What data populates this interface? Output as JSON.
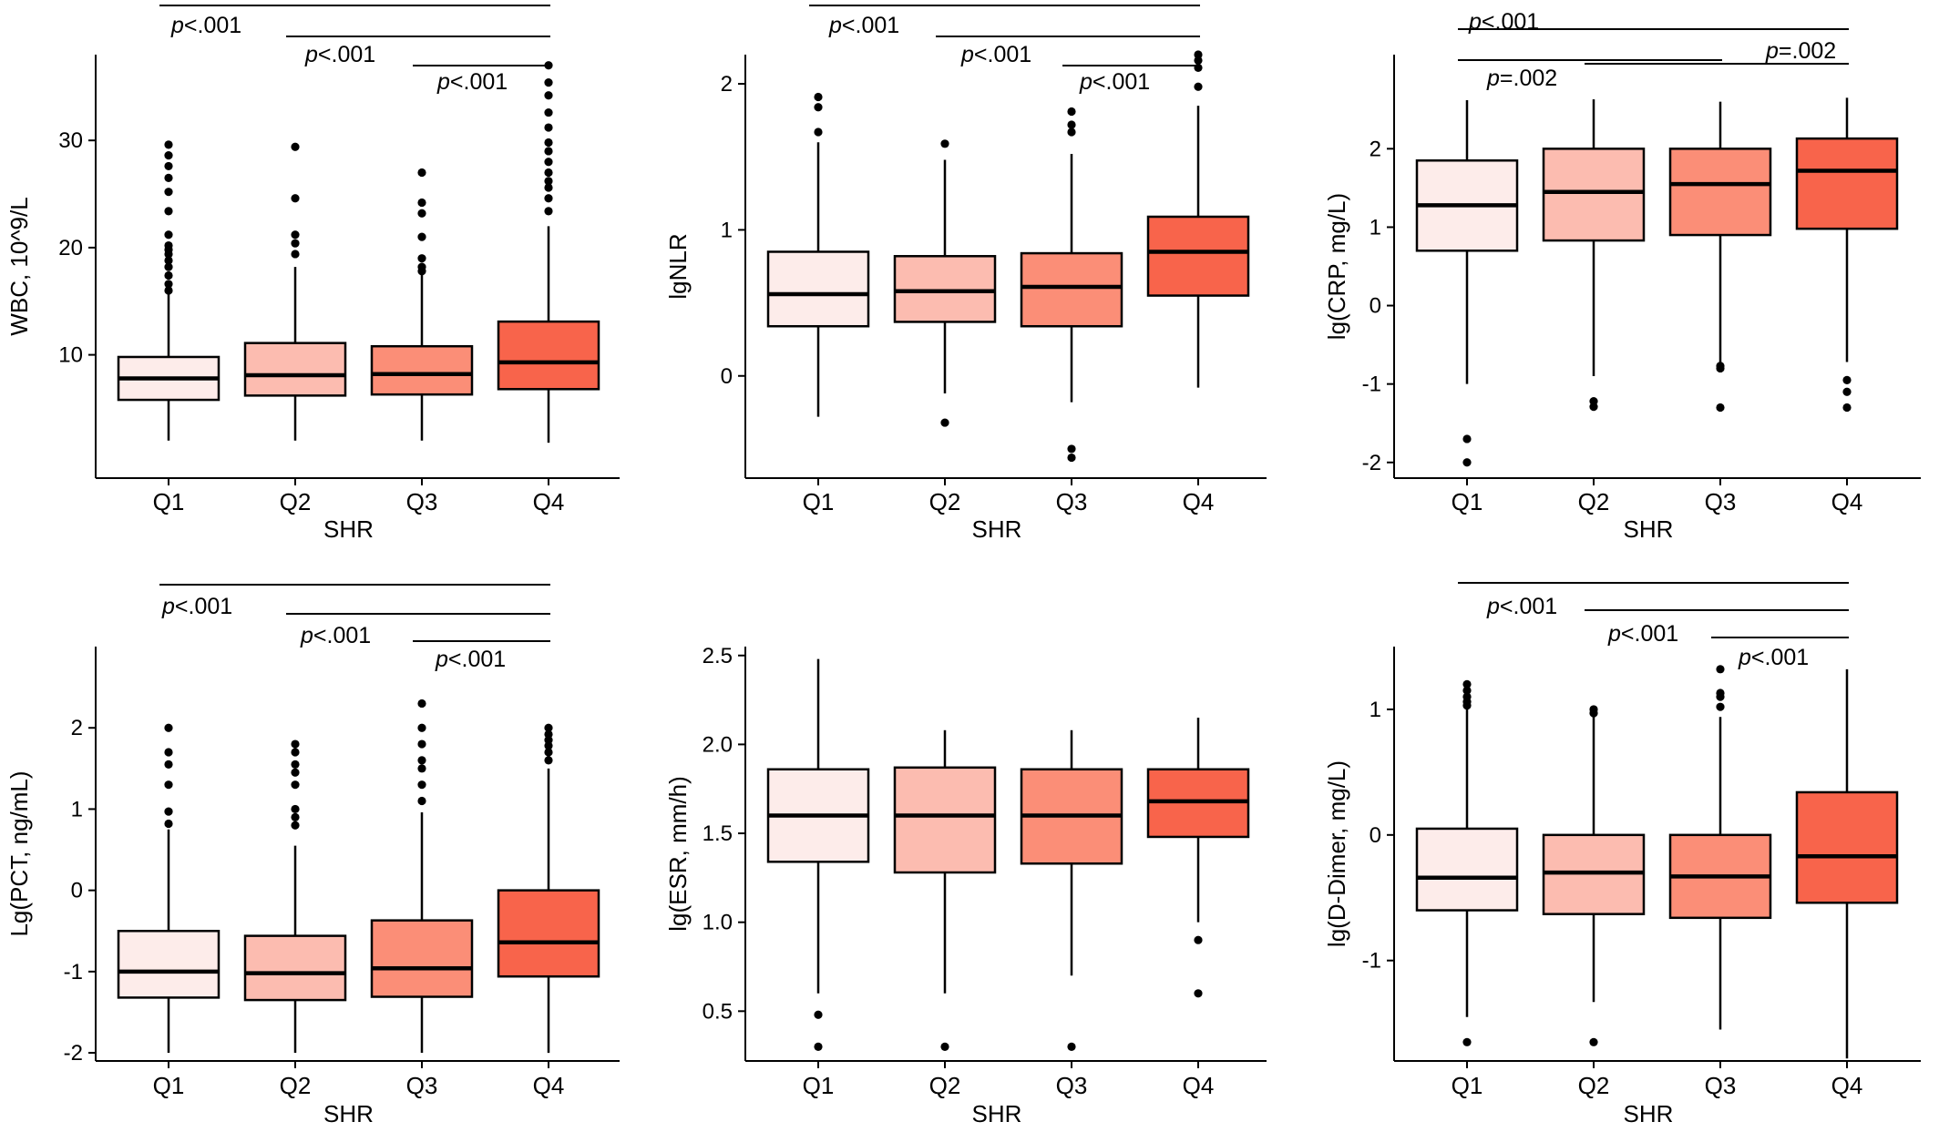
{
  "colors": {
    "Q1": "#fdecea",
    "Q2": "#fcbcb0",
    "Q3": "#fb8e77",
    "Q4": "#f8644b",
    "outline": "#000000",
    "outlier": "#000000"
  },
  "chart_data": [
    {
      "type": "box",
      "xlabel": "SHR",
      "ylabel": "WBC, 10^9/L",
      "categories": [
        "Q1",
        "Q2",
        "Q3",
        "Q4"
      ],
      "ylim": [
        -1.5,
        38
      ],
      "yticks": [
        10,
        20,
        30
      ],
      "boxes": [
        {
          "category": "Q1",
          "whisker_low": 2.0,
          "q1": 5.8,
          "median": 7.8,
          "q3": 9.8,
          "whisker_high": 16.0,
          "outliers": [
            16.0,
            16.6,
            17.4,
            18.2,
            18.8,
            19.4,
            19.8,
            20.2,
            21.2,
            23.4,
            25.2,
            26.5,
            27.6,
            28.6,
            29.6
          ]
        },
        {
          "category": "Q2",
          "whisker_low": 2.0,
          "q1": 6.2,
          "median": 8.1,
          "q3": 11.1,
          "whisker_high": 18.2,
          "outliers": [
            19.4,
            20.4,
            21.2,
            24.6,
            29.4
          ]
        },
        {
          "category": "Q3",
          "whisker_low": 2.0,
          "q1": 6.3,
          "median": 8.2,
          "q3": 10.8,
          "whisker_high": 17.5,
          "outliers": [
            17.8,
            18.2,
            19.0,
            21.0,
            23.2,
            24.2,
            27.0
          ]
        },
        {
          "category": "Q4",
          "whisker_low": 1.8,
          "q1": 6.8,
          "median": 9.3,
          "q3": 13.1,
          "whisker_high": 22.0,
          "outliers": [
            23.4,
            24.6,
            25.6,
            26.2,
            27.0,
            28.0,
            29.0,
            29.8,
            31.2,
            32.6,
            34.2,
            35.4,
            37.0
          ]
        }
      ],
      "comparisons": [
        {
          "from": "Q1",
          "to": "Q4",
          "label": "p<.001"
        },
        {
          "from": "Q2",
          "to": "Q4",
          "label": "p<.001"
        },
        {
          "from": "Q3",
          "to": "Q4",
          "label": "p<.001"
        }
      ]
    },
    {
      "type": "box",
      "xlabel": "SHR",
      "ylabel": "lgNLR",
      "categories": [
        "Q1",
        "Q2",
        "Q3",
        "Q4"
      ],
      "ylim": [
        -0.7,
        2.2
      ],
      "yticks": [
        0,
        1,
        2
      ],
      "boxes": [
        {
          "category": "Q1",
          "whisker_low": -0.28,
          "q1": 0.34,
          "median": 0.56,
          "q3": 0.85,
          "whisker_high": 1.6,
          "outliers": [
            1.67,
            1.84,
            1.91
          ]
        },
        {
          "category": "Q2",
          "whisker_low": -0.12,
          "q1": 0.37,
          "median": 0.58,
          "q3": 0.82,
          "whisker_high": 1.48,
          "outliers": [
            -0.32,
            1.59
          ]
        },
        {
          "category": "Q3",
          "whisker_low": -0.18,
          "q1": 0.34,
          "median": 0.61,
          "q3": 0.84,
          "whisker_high": 1.52,
          "outliers": [
            -0.5,
            -0.56,
            1.67,
            1.72,
            1.81
          ]
        },
        {
          "category": "Q4",
          "whisker_low": -0.08,
          "q1": 0.55,
          "median": 0.85,
          "q3": 1.09,
          "whisker_high": 1.85,
          "outliers": [
            1.98,
            2.11,
            2.16,
            2.2
          ]
        }
      ],
      "comparisons": [
        {
          "from": "Q1",
          "to": "Q4",
          "label": "p<.001"
        },
        {
          "from": "Q2",
          "to": "Q4",
          "label": "p<.001"
        },
        {
          "from": "Q3",
          "to": "Q4",
          "label": "p<.001"
        }
      ]
    },
    {
      "type": "box",
      "xlabel": "SHR",
      "ylabel": "lg(CRP, mg/L)",
      "categories": [
        "Q1",
        "Q2",
        "Q3",
        "Q4"
      ],
      "ylim": [
        -2.2,
        3.2
      ],
      "yticks": [
        -2,
        -1,
        0,
        1,
        2
      ],
      "boxes": [
        {
          "category": "Q1",
          "whisker_low": -1.0,
          "q1": 0.7,
          "median": 1.28,
          "q3": 1.85,
          "whisker_high": 2.62,
          "outliers": [
            -1.7,
            -2.0
          ]
        },
        {
          "category": "Q2",
          "whisker_low": -0.9,
          "q1": 0.83,
          "median": 1.45,
          "q3": 2.0,
          "whisker_high": 2.63,
          "outliers": [
            -1.22,
            -1.29
          ]
        },
        {
          "category": "Q3",
          "whisker_low": -0.75,
          "q1": 0.9,
          "median": 1.55,
          "q3": 2.0,
          "whisker_high": 2.6,
          "outliers": [
            -0.77,
            -0.8,
            -1.3
          ]
        },
        {
          "category": "Q4",
          "whisker_low": -0.72,
          "q1": 0.98,
          "median": 1.72,
          "q3": 2.13,
          "whisker_high": 2.65,
          "outliers": [
            -0.95,
            -1.1,
            -1.3
          ]
        }
      ],
      "comparisons": [
        {
          "from": "Q1",
          "to": "Q4",
          "label": "p<.001"
        },
        {
          "from": "Q2",
          "to": "Q4",
          "label": "p=.002"
        },
        {
          "from": "Q1",
          "to": "Q3",
          "label": "p=.002"
        }
      ]
    },
    {
      "type": "box",
      "xlabel": "SHR",
      "ylabel": "Lg(PCT, ng/mL)",
      "categories": [
        "Q1",
        "Q2",
        "Q3",
        "Q4"
      ],
      "ylim": [
        -2.1,
        3.0
      ],
      "yticks": [
        -2,
        -1,
        0,
        1,
        2
      ],
      "boxes": [
        {
          "category": "Q1",
          "whisker_low": -2.0,
          "q1": -1.32,
          "median": -1.0,
          "q3": -0.5,
          "whisker_high": 0.75,
          "outliers": [
            0.82,
            0.97,
            1.3,
            1.55,
            1.7,
            2.0
          ]
        },
        {
          "category": "Q2",
          "whisker_low": -2.0,
          "q1": -1.35,
          "median": -1.02,
          "q3": -0.56,
          "whisker_high": 0.55,
          "outliers": [
            0.8,
            0.9,
            1.0,
            1.3,
            1.45,
            1.55,
            1.7,
            1.8
          ]
        },
        {
          "category": "Q3",
          "whisker_low": -2.0,
          "q1": -1.31,
          "median": -0.96,
          "q3": -0.37,
          "whisker_high": 0.96,
          "outliers": [
            1.1,
            1.3,
            1.5,
            1.6,
            1.8,
            2.0,
            2.3
          ]
        },
        {
          "category": "Q4",
          "whisker_low": -2.0,
          "q1": -1.06,
          "median": -0.64,
          "q3": 0.0,
          "whisker_high": 1.5,
          "outliers": [
            1.6,
            1.7,
            1.78,
            1.85,
            1.92,
            2.0
          ]
        }
      ],
      "comparisons": [
        {
          "from": "Q1",
          "to": "Q4",
          "label": "p<.001"
        },
        {
          "from": "Q2",
          "to": "Q4",
          "label": "p<.001"
        },
        {
          "from": "Q3",
          "to": "Q4",
          "label": "p<.001"
        }
      ]
    },
    {
      "type": "box",
      "xlabel": "SHR",
      "ylabel": "lg(ESR, mm/h)",
      "categories": [
        "Q1",
        "Q2",
        "Q3",
        "Q4"
      ],
      "ylim": [
        0.22,
        2.55
      ],
      "yticks": [
        0.5,
        1.0,
        1.5,
        2.0,
        2.5
      ],
      "ytick_labels": [
        "0.5",
        "1.0",
        "1.5",
        "2.0",
        "2.5"
      ],
      "boxes": [
        {
          "category": "Q1",
          "whisker_low": 0.6,
          "q1": 1.34,
          "median": 1.6,
          "q3": 1.86,
          "whisker_high": 2.48,
          "outliers": [
            0.48,
            0.3
          ]
        },
        {
          "category": "Q2",
          "whisker_low": 0.6,
          "q1": 1.28,
          "median": 1.6,
          "q3": 1.87,
          "whisker_high": 2.08,
          "outliers": [
            0.3
          ]
        },
        {
          "category": "Q3",
          "whisker_low": 0.7,
          "q1": 1.33,
          "median": 1.6,
          "q3": 1.86,
          "whisker_high": 2.08,
          "outliers": [
            0.3
          ]
        },
        {
          "category": "Q4",
          "whisker_low": 1.0,
          "q1": 1.48,
          "median": 1.68,
          "q3": 1.86,
          "whisker_high": 2.15,
          "outliers": [
            0.9,
            0.6
          ]
        }
      ],
      "comparisons": []
    },
    {
      "type": "box",
      "xlabel": "SHR",
      "ylabel": "lg(D-Dimer, mg/L)",
      "categories": [
        "Q1",
        "Q2",
        "Q3",
        "Q4"
      ],
      "ylim": [
        -1.8,
        1.5
      ],
      "yticks": [
        -1,
        0,
        1
      ],
      "boxes": [
        {
          "category": "Q1",
          "whisker_low": -1.45,
          "q1": -0.6,
          "median": -0.34,
          "q3": 0.05,
          "whisker_high": 1.0,
          "outliers": [
            1.03,
            1.06,
            1.1,
            1.15,
            1.2,
            -1.65
          ]
        },
        {
          "category": "Q2",
          "whisker_low": -1.33,
          "q1": -0.63,
          "median": -0.3,
          "q3": 0.0,
          "whisker_high": 0.95,
          "outliers": [
            0.97,
            1.0,
            -1.65
          ]
        },
        {
          "category": "Q3",
          "whisker_low": -1.55,
          "q1": -0.66,
          "median": -0.33,
          "q3": 0.0,
          "whisker_high": 0.94,
          "outliers": [
            1.02,
            1.1,
            1.13,
            1.32
          ]
        },
        {
          "category": "Q4",
          "whisker_low": -1.78,
          "q1": -0.54,
          "median": -0.17,
          "q3": 0.34,
          "whisker_high": 1.32,
          "outliers": []
        }
      ],
      "comparisons": [
        {
          "from": "Q1",
          "to": "Q4",
          "label": "p<.001"
        },
        {
          "from": "Q2",
          "to": "Q4",
          "label": "p<.001"
        },
        {
          "from": "Q3",
          "to": "Q4",
          "label": "p<.001"
        }
      ]
    }
  ]
}
